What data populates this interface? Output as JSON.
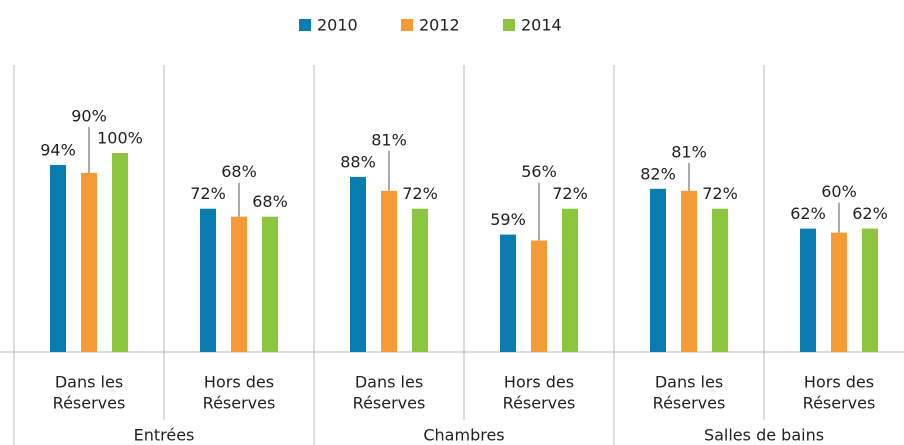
{
  "chart_data": {
    "type": "bar",
    "groups": [
      "Entrées",
      "Chambres",
      "Salles de bains"
    ],
    "categories": [
      [
        "Dans les",
        "Réserves"
      ],
      [
        "Hors des",
        "Réserves"
      ],
      [
        "Dans les",
        "Réserves"
      ],
      [
        "Hors des",
        "Réserves"
      ],
      [
        "Dans les",
        "Réserves"
      ],
      [
        "Hors des",
        "Réserves"
      ]
    ],
    "series": [
      {
        "name": "2010",
        "color": "#0a7cb0",
        "values": [
          94,
          72,
          88,
          59,
          82,
          62
        ],
        "value_labels": [
          "94%",
          "72%",
          "88%",
          "59%",
          "82%",
          "62%"
        ]
      },
      {
        "name": "2012",
        "color": "#f59b36",
        "values": [
          90,
          68,
          81,
          56,
          81,
          60
        ],
        "value_labels": [
          "90%",
          "68%",
          "81%",
          "56%",
          "81%",
          "60%"
        ]
      },
      {
        "name": "2014",
        "color": "#8cc63f",
        "values": [
          100,
          68,
          72,
          72,
          72,
          62
        ],
        "value_labels": [
          "100%",
          "68%",
          "72%",
          "72%",
          "72%",
          "62%"
        ]
      }
    ],
    "legend": "top"
  }
}
